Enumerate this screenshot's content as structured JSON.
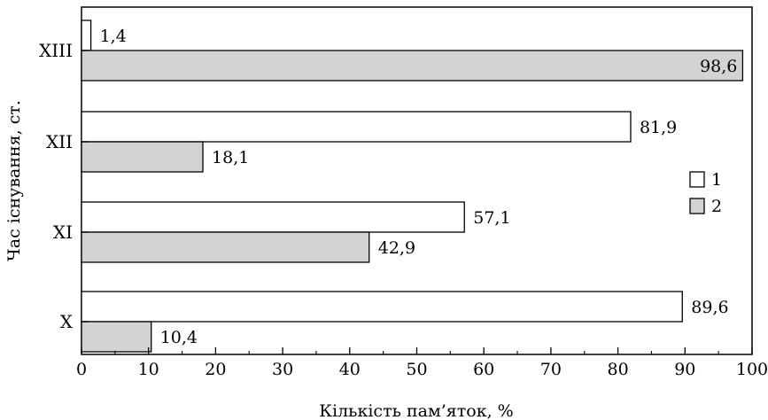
{
  "chart_data": {
    "type": "bar",
    "orientation": "horizontal",
    "categories": [
      "X",
      "XI",
      "XII",
      "XIII"
    ],
    "series": [
      {
        "name": "1",
        "values": [
          89.6,
          57.1,
          81.9,
          1.4
        ],
        "labels": [
          "89,6",
          "57,1",
          "81,9",
          "1,4"
        ],
        "color": "#ffffff"
      },
      {
        "name": "2",
        "values": [
          10.4,
          42.9,
          18.1,
          98.6
        ],
        "labels": [
          "10,4",
          "42,9",
          "18,1",
          "98,6"
        ],
        "color": "#d3d3d3"
      }
    ],
    "xlabel": "Кількість пам’яток, %",
    "ylabel": "Час існування, ст.",
    "xlim": [
      0,
      100
    ],
    "xticks": [
      "0",
      "10",
      "20",
      "30",
      "40",
      "50",
      "60",
      "70",
      "80",
      "90",
      "100"
    ],
    "grid": false,
    "legend_position": "right"
  }
}
